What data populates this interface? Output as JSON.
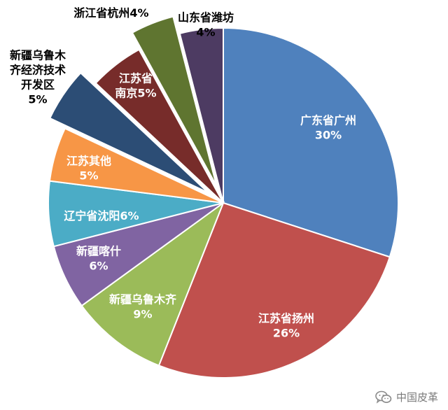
{
  "chart_data": {
    "type": "pie",
    "start_angle_deg": 0,
    "direction": "clockwise",
    "slices": [
      {
        "label_lines": [
          "广东省广州",
          "30%"
        ],
        "value": 30,
        "color": "#4F81BD",
        "label_color": "#ffffff",
        "exploded": false
      },
      {
        "label_lines": [
          "江苏省扬州",
          "26%"
        ],
        "value": 26,
        "color": "#C0504D",
        "label_color": "#ffffff",
        "exploded": false
      },
      {
        "label_lines": [
          "新疆乌鲁木齐",
          "9%"
        ],
        "value": 9,
        "color": "#9BBB59",
        "label_color": "#ffffff",
        "exploded": false
      },
      {
        "label_lines": [
          "新疆喀什",
          "6%"
        ],
        "value": 6,
        "color": "#8064A2",
        "label_color": "#ffffff",
        "exploded": false
      },
      {
        "label_lines": [
          "辽宁省沈阳6%"
        ],
        "value": 6,
        "color": "#4BACC6",
        "label_color": "#ffffff",
        "exploded": false
      },
      {
        "label_lines": [
          "江苏其他",
          "5%"
        ],
        "value": 5,
        "color": "#F79646",
        "label_color": "#ffffff",
        "exploded": false
      },
      {
        "label_lines": [
          "新疆乌鲁木",
          "齐经济技术",
          "开发区",
          "5%"
        ],
        "value": 5,
        "color": "#2C4D75",
        "label_color": "#000000",
        "exploded": true
      },
      {
        "label_lines": [
          "江苏省",
          "南京5%"
        ],
        "value": 5,
        "color": "#772C2A",
        "label_color": "#ffffff",
        "exploded": false
      },
      {
        "label_lines": [
          "浙江省杭州4%"
        ],
        "value": 4,
        "color": "#5F7530",
        "label_color": "#000000",
        "exploded": true
      },
      {
        "label_lines": [
          "山东省潍坊",
          "4%"
        ],
        "value": 4,
        "color": "#4D3B62",
        "label_color": "#000000",
        "exploded": false
      }
    ]
  },
  "watermark": {
    "text": "中国皮革",
    "icon": "wechat-icon",
    "color": "#7a7a7a"
  }
}
